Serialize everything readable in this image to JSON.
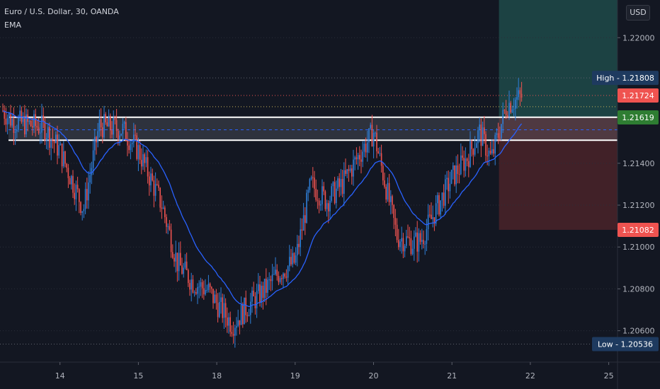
{
  "header": {
    "symbol": "Euro / U.S. Dollar, 30, OANDA",
    "indicator": "EMA"
  },
  "currency_button": "USD",
  "colors": {
    "background": "#131722",
    "up": "#2f7fd8",
    "down": "#ef5350",
    "ema": "#2962ff",
    "profit_zone": "#1f4a49",
    "loss_zone": "#4a2329",
    "axis_text": "#b2b5be"
  },
  "chart_data": {
    "type": "candlestick",
    "ylim": [
      1.2045,
      1.2218
    ],
    "y_ticks": [
      "1.22000",
      "1.21400",
      "1.21200",
      "1.21000",
      "1.20800",
      "1.20600"
    ],
    "x_ticks": [
      "14",
      "15",
      "18",
      "19",
      "20",
      "21",
      "22",
      "25"
    ],
    "price_labels": [
      {
        "name": "high",
        "prefix": "High",
        "value": "1.21808",
        "color": "#1e3a5f"
      },
      {
        "name": "last",
        "prefix": "",
        "value": "1.21724",
        "color": "#ef5350"
      },
      {
        "name": "entry",
        "prefix": "",
        "value": "1.21619",
        "color": "#2e7d32"
      },
      {
        "name": "stop",
        "prefix": "",
        "value": "1.21082",
        "color": "#ef5350"
      },
      {
        "name": "low",
        "prefix": "Low",
        "value": "1.20536",
        "color": "#1e3a5f"
      }
    ],
    "levels": {
      "resistance_top": 1.2162,
      "resistance_bottom": 1.2151,
      "mid_dashed": 1.2156,
      "high": 1.21808,
      "low": 1.20536,
      "last": 1.21724
    },
    "position": {
      "entry": 1.21619,
      "target": 1.2218,
      "stop": 1.21082,
      "start_date": "21.6"
    },
    "anchors": [
      [
        "13.0",
        1.2176
      ],
      [
        "13.4",
        1.216
      ],
      [
        "13.8",
        1.2157
      ],
      [
        "14.0",
        1.2146
      ],
      [
        "14.3",
        1.2118
      ],
      [
        "14.5",
        1.2158
      ],
      [
        "14.8",
        1.2156
      ],
      [
        "15.0",
        1.2146
      ],
      [
        "15.3",
        1.212
      ],
      [
        "15.5",
        1.2092
      ],
      [
        "15.7",
        1.2083
      ],
      [
        "15.9",
        1.2079
      ],
      [
        "18.0",
        1.2073
      ],
      [
        "18.2",
        1.2063
      ],
      [
        "18.4",
        1.2072
      ],
      [
        "18.6",
        1.2079
      ],
      [
        "18.8",
        1.2088
      ],
      [
        "19.0",
        1.2093
      ],
      [
        "19.2",
        1.213
      ],
      [
        "19.4",
        1.2122
      ],
      [
        "19.6",
        1.213
      ],
      [
        "19.8",
        1.2143
      ],
      [
        "20.0",
        1.2155
      ],
      [
        "20.15",
        1.213
      ],
      [
        "20.3",
        1.2105
      ],
      [
        "20.5",
        1.2102
      ],
      [
        "20.6",
        1.2103
      ],
      [
        "20.8",
        1.2118
      ],
      [
        "21.0",
        1.2133
      ],
      [
        "21.2",
        1.2143
      ],
      [
        "21.35",
        1.2155
      ],
      [
        "21.5",
        1.2142
      ],
      [
        "21.6",
        1.2155
      ],
      [
        "21.7",
        1.2168
      ],
      [
        "21.9",
        1.2172
      ]
    ]
  }
}
